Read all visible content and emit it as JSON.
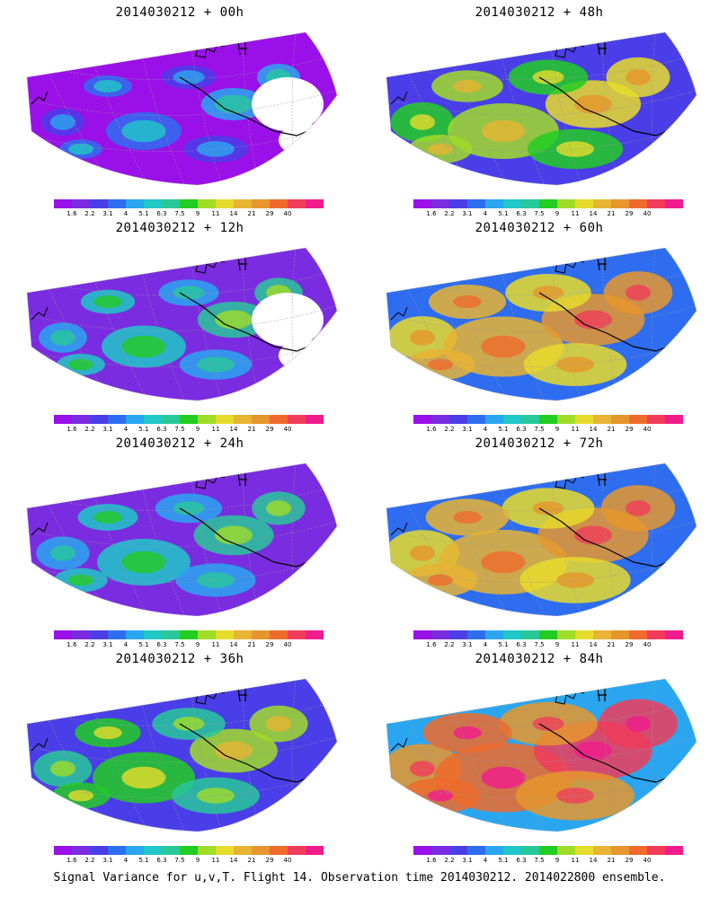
{
  "panels": [
    {
      "title": "2014030212 + 00h",
      "lead": 0
    },
    {
      "title": "2014030212 + 48h",
      "lead": 48
    },
    {
      "title": "2014030212 + 12h",
      "lead": 12
    },
    {
      "title": "2014030212 + 60h",
      "lead": 60
    },
    {
      "title": "2014030212 + 24h",
      "lead": 24
    },
    {
      "title": "2014030212 + 72h",
      "lead": 72
    },
    {
      "title": "2014030212 + 36h",
      "lead": 36
    },
    {
      "title": "2014030212 + 84h",
      "lead": 84
    }
  ],
  "colorbar": {
    "ticks": [
      "1.6",
      "2.2",
      "3.1",
      "4",
      "5.1",
      "6.3",
      "7.5",
      "9",
      "11",
      "14",
      "21",
      "29",
      "40"
    ],
    "colors": [
      "#9a10e8",
      "#7a2ce0",
      "#4a3ee8",
      "#2f6df0",
      "#2aa6f0",
      "#20c8c8",
      "#28c89a",
      "#22cc22",
      "#a0dc28",
      "#e6dc2c",
      "#e8b432",
      "#e6962c",
      "#ef6a2c",
      "#f03c5a",
      "#f01c8c"
    ]
  },
  "footer": "Signal Variance for u,v,T. Flight 14. Observation time 2014030212. 2014022800 ensemble."
}
